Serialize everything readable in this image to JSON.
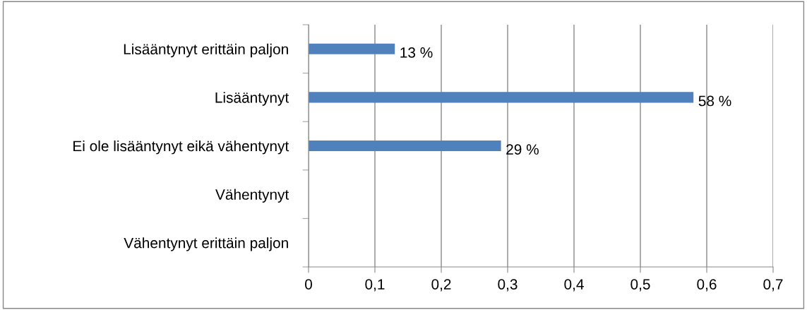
{
  "chart_data": {
    "type": "bar",
    "orientation": "horizontal",
    "categories": [
      "Lisääntynyt erittäin paljon",
      "Lisääntynyt",
      "Ei ole lisääntynyt eikä vähentynyt",
      "Vähentynyt",
      "Vähentynyt erittäin paljon"
    ],
    "values": [
      0.13,
      0.58,
      0.29,
      null,
      null
    ],
    "value_labels": [
      "13 %",
      "58 %",
      "29 %",
      null,
      null
    ],
    "color": "#4f81bd",
    "xlim": [
      0,
      0.7
    ],
    "xticks": [
      0,
      {
        "value": 0.1,
        "label": "0,1"
      },
      {
        "value": 0.2,
        "label": "0,2"
      },
      {
        "value": 0.3,
        "label": "0,3"
      },
      {
        "value": 0.4,
        "label": "0,4"
      },
      {
        "value": 0.5,
        "label": "0,5"
      },
      {
        "value": 0.6,
        "label": "0,6"
      },
      {
        "value": 0.7,
        "label": "0,7"
      }
    ],
    "grid": "x",
    "legend": false
  }
}
